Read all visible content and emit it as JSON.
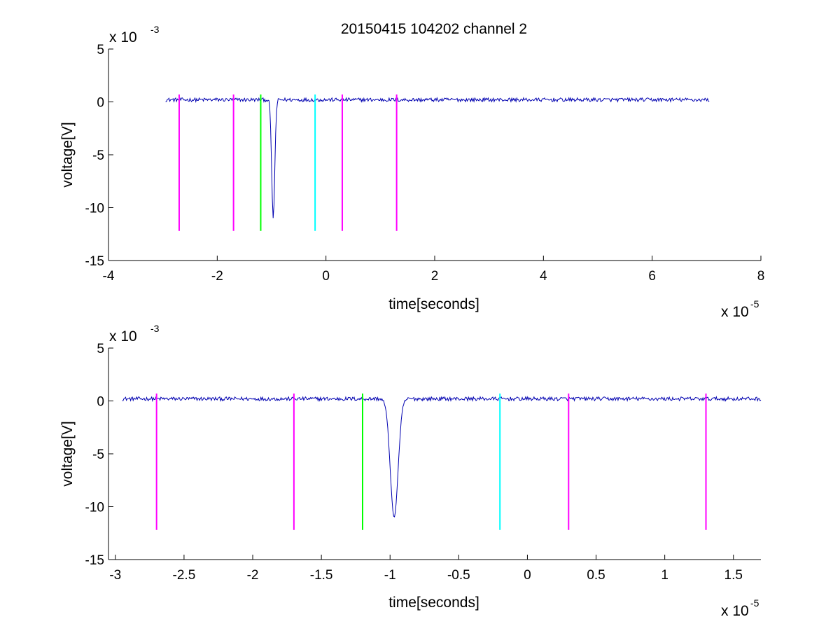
{
  "figure": {
    "title": "20150415 104202 channel 2",
    "background": "#ffffff"
  },
  "colors": {
    "signal": "#0000b0",
    "magenta": "#ff00ff",
    "green": "#00ff00",
    "cyan": "#00ffff",
    "axis": "#000000"
  },
  "chart_data": [
    {
      "type": "line",
      "xlabel": "time[seconds]",
      "ylabel": "voltage[V]",
      "x_multiplier": {
        "base": "x 10",
        "exponent": "-5"
      },
      "y_multiplier": {
        "base": "x 10",
        "exponent": "-3"
      },
      "xlim": [
        -4e-05,
        8e-05
      ],
      "ylim": [
        -0.015,
        0.005
      ],
      "xticks": [
        -4e-05,
        -2e-05,
        0,
        2e-05,
        4e-05,
        6e-05,
        8e-05
      ],
      "xtick_labels": [
        "-4",
        "-2",
        "0",
        "2",
        "4",
        "6",
        "8"
      ],
      "yticks": [
        0.005,
        0,
        -0.005,
        -0.01,
        -0.015
      ],
      "ytick_labels": [
        "5",
        "0",
        "-5",
        "-10",
        "-15"
      ],
      "signal": {
        "x_range": [
          -2.95e-05,
          7.05e-05
        ],
        "baseline": 0.0002,
        "noise_amplitude": 0.0003,
        "dip": {
          "center": -9.7e-06,
          "min": -0.011,
          "width": 4e-07
        }
      },
      "markers": [
        {
          "x": -2.7e-05,
          "color": "magenta",
          "y_top": 0.0007,
          "y_bottom": -0.0122
        },
        {
          "x": -1.7e-05,
          "color": "magenta",
          "y_top": 0.0007,
          "y_bottom": -0.0122
        },
        {
          "x": -1.2e-05,
          "color": "green",
          "y_top": 0.0007,
          "y_bottom": -0.0122
        },
        {
          "x": -2e-06,
          "color": "cyan",
          "y_top": 0.0007,
          "y_bottom": -0.0122
        },
        {
          "x": 3e-06,
          "color": "magenta",
          "y_top": 0.0007,
          "y_bottom": -0.0122
        },
        {
          "x": 1.3e-05,
          "color": "magenta",
          "y_top": 0.0007,
          "y_bottom": -0.0122
        }
      ]
    },
    {
      "type": "line",
      "xlabel": "time[seconds]",
      "ylabel": "voltage[V]",
      "x_multiplier": {
        "base": "x 10",
        "exponent": "-5"
      },
      "y_multiplier": {
        "base": "x 10",
        "exponent": "-3"
      },
      "xlim": [
        -3.05e-05,
        1.7e-05
      ],
      "ylim": [
        -0.015,
        0.005
      ],
      "xticks": [
        -3e-05,
        -2.5e-05,
        -2e-05,
        -1.5e-05,
        -1e-05,
        -5e-06,
        0,
        5e-06,
        1e-05,
        1.5e-05
      ],
      "xtick_labels": [
        "-3",
        "-2.5",
        "-2",
        "-1.5",
        "-1",
        "-0.5",
        "0",
        "0.5",
        "1",
        "1.5"
      ],
      "yticks": [
        0.005,
        0,
        -0.005,
        -0.01,
        -0.015
      ],
      "ytick_labels": [
        "5",
        "0",
        "-5",
        "-10",
        "-15"
      ],
      "signal": {
        "x_range": [
          -2.95e-05,
          1.7e-05
        ],
        "baseline": 0.0002,
        "noise_amplitude": 0.0003,
        "dip": {
          "center": -9.7e-06,
          "min": -0.011,
          "width": 4e-07
        }
      },
      "markers": [
        {
          "x": -2.7e-05,
          "color": "magenta",
          "y_top": 0.0007,
          "y_bottom": -0.0122
        },
        {
          "x": -1.7e-05,
          "color": "magenta",
          "y_top": 0.0007,
          "y_bottom": -0.0122
        },
        {
          "x": -1.2e-05,
          "color": "green",
          "y_top": 0.0007,
          "y_bottom": -0.0122
        },
        {
          "x": -2e-06,
          "color": "cyan",
          "y_top": 0.0007,
          "y_bottom": -0.0122
        },
        {
          "x": 3e-06,
          "color": "magenta",
          "y_top": 0.0007,
          "y_bottom": -0.0122
        },
        {
          "x": 1.3e-05,
          "color": "magenta",
          "y_top": 0.0007,
          "y_bottom": -0.0122
        }
      ]
    }
  ]
}
